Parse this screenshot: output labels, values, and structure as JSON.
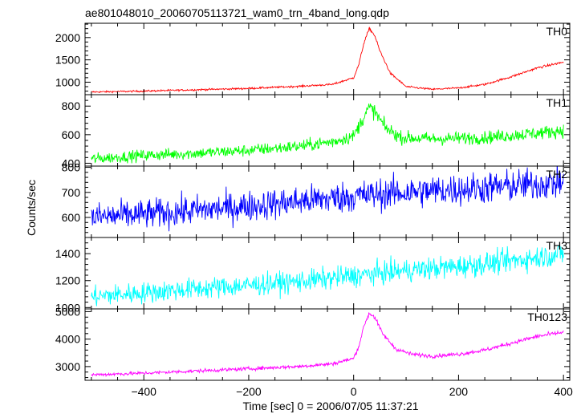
{
  "chart_data": {
    "type": "line",
    "title": "ae801048010_20060705113721_wam0_trn_4band_long.qdp",
    "xlabel": "Time [sec] 0 = 2006/07/05 11:37:21",
    "ylabel": "Counts/sec",
    "xlim": [
      -512,
      412
    ],
    "x_ticks": [
      -400,
      -200,
      0,
      200,
      400
    ],
    "x_tick_labels": [
      "−400",
      "−200",
      "0",
      "200",
      "400"
    ],
    "grid": false,
    "panels": [
      {
        "name": "TH0",
        "color": "#ff0000",
        "ylim": [
          720,
          2320
        ],
        "y_ticks": [
          1000,
          1500,
          2000
        ],
        "y_tick_labels": [
          "1000",
          "1500",
          "2000"
        ],
        "noise": 14,
        "points": [
          [
            -500,
            780
          ],
          [
            -400,
            800
          ],
          [
            -300,
            830
          ],
          [
            -200,
            860
          ],
          [
            -100,
            910
          ],
          [
            -40,
            950
          ],
          [
            0,
            1100
          ],
          [
            10,
            1400
          ],
          [
            20,
            1900
          ],
          [
            30,
            2200
          ],
          [
            40,
            2050
          ],
          [
            50,
            1700
          ],
          [
            70,
            1200
          ],
          [
            100,
            900
          ],
          [
            150,
            840
          ],
          [
            200,
            870
          ],
          [
            250,
            950
          ],
          [
            300,
            1120
          ],
          [
            350,
            1320
          ],
          [
            400,
            1450
          ]
        ]
      },
      {
        "name": "TH1",
        "color": "#00ff00",
        "ylim": [
          380,
          880
        ],
        "y_ticks": [
          400,
          600,
          800
        ],
        "y_tick_labels": [
          "400",
          "600",
          "800"
        ],
        "noise": 28,
        "points": [
          [
            -500,
            430
          ],
          [
            -400,
            455
          ],
          [
            -300,
            470
          ],
          [
            -200,
            490
          ],
          [
            -100,
            520
          ],
          [
            -40,
            550
          ],
          [
            0,
            590
          ],
          [
            20,
            730
          ],
          [
            30,
            790
          ],
          [
            40,
            760
          ],
          [
            60,
            650
          ],
          [
            90,
            580
          ],
          [
            150,
            570
          ],
          [
            250,
            580
          ],
          [
            300,
            595
          ],
          [
            350,
            610
          ],
          [
            400,
            630
          ]
        ]
      },
      {
        "name": "TH2",
        "color": "#0000ff",
        "ylim": [
          520,
          805
        ],
        "y_ticks": [
          600,
          700,
          800
        ],
        "y_tick_labels": [
          "600",
          "700",
          "800"
        ],
        "noise": 42,
        "points": [
          [
            -500,
            600
          ],
          [
            -400,
            612
          ],
          [
            -300,
            628
          ],
          [
            -200,
            645
          ],
          [
            -100,
            665
          ],
          [
            0,
            685
          ],
          [
            100,
            700
          ],
          [
            200,
            712
          ],
          [
            300,
            725
          ],
          [
            400,
            740
          ]
        ]
      },
      {
        "name": "TH3",
        "color": "#00ffff",
        "ylim": [
          990,
          1520
        ],
        "y_ticks": [
          1000,
          1200,
          1400
        ],
        "y_tick_labels": [
          "1000",
          "1200",
          "1400"
        ],
        "noise": 55,
        "points": [
          [
            -500,
            1080
          ],
          [
            -400,
            1110
          ],
          [
            -300,
            1140
          ],
          [
            -200,
            1165
          ],
          [
            -100,
            1195
          ],
          [
            0,
            1235
          ],
          [
            100,
            1275
          ],
          [
            200,
            1305
          ],
          [
            300,
            1345
          ],
          [
            400,
            1400
          ]
        ]
      },
      {
        "name": "TH0123",
        "color": "#ff00ff",
        "ylim": [
          2500,
          5100
        ],
        "y_ticks": [
          3000,
          4000,
          5000
        ],
        "y_tick_labels": [
          "3000",
          "4000",
          "5000"
        ],
        "noise": 45,
        "points": [
          [
            -500,
            2700
          ],
          [
            -400,
            2760
          ],
          [
            -300,
            2840
          ],
          [
            -200,
            2920
          ],
          [
            -100,
            3010
          ],
          [
            -40,
            3100
          ],
          [
            0,
            3300
          ],
          [
            10,
            3750
          ],
          [
            20,
            4500
          ],
          [
            30,
            4950
          ],
          [
            40,
            4800
          ],
          [
            55,
            4200
          ],
          [
            80,
            3650
          ],
          [
            110,
            3450
          ],
          [
            150,
            3380
          ],
          [
            200,
            3450
          ],
          [
            250,
            3600
          ],
          [
            300,
            3850
          ],
          [
            350,
            4100
          ],
          [
            400,
            4250
          ]
        ]
      }
    ]
  }
}
